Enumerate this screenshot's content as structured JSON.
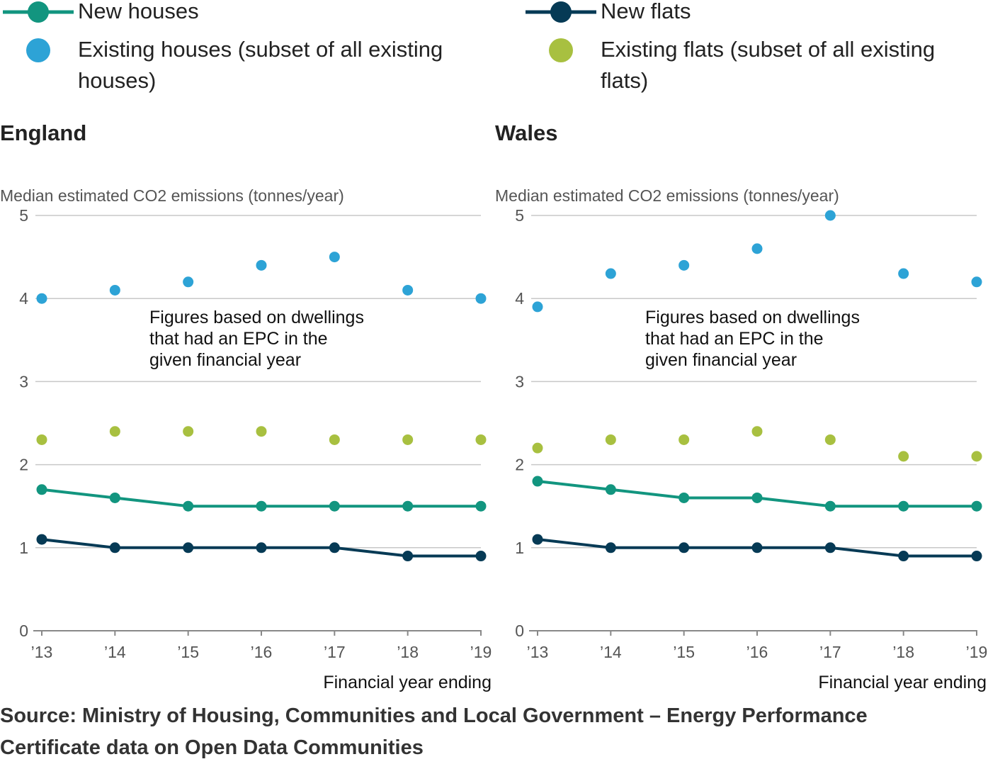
{
  "legend": {
    "items": [
      {
        "label": "New houses",
        "type": "line",
        "color": "#12957f"
      },
      {
        "label": "New flats",
        "type": "line",
        "color": "#063a55"
      },
      {
        "label_lines": [
          "Existing houses (subset of all existing",
          "houses)"
        ],
        "type": "dot",
        "color": "#2da3d6"
      },
      {
        "label_lines": [
          "Existing flats (subset of all existing",
          "flats)"
        ],
        "type": "dot",
        "color": "#a8c040"
      }
    ]
  },
  "source": {
    "lines": [
      "Source: Ministry of Housing, Communities and Local Government – Energy Performance",
      "Certificate data on Open Data Communities"
    ]
  },
  "chart_data": [
    {
      "type": "line",
      "title": "England",
      "ylabel": "Median estimated CO2 emissions (tonnes/year)",
      "xlabel": "Financial year ending",
      "categories": [
        "’13",
        "’14",
        "’15",
        "’16",
        "’17",
        "’18",
        "’19"
      ],
      "yticks": [
        "0",
        "1",
        "2",
        "3",
        "4",
        "5"
      ],
      "ylim": [
        0,
        5
      ],
      "grid": true,
      "annotation": [
        "Figures based on dwellings",
        "that had an EPC in the",
        "given financial year"
      ],
      "series": [
        {
          "name": "Existing houses (subset of all existing houses)",
          "style": "dots",
          "color": "#2da3d6",
          "values": [
            4.0,
            4.1,
            4.2,
            4.4,
            4.5,
            4.1,
            4.0
          ]
        },
        {
          "name": "Existing flats (subset of all existing flats)",
          "style": "dots",
          "color": "#a8c040",
          "values": [
            2.3,
            2.4,
            2.4,
            2.4,
            2.3,
            2.3,
            2.3
          ]
        },
        {
          "name": "New houses",
          "style": "line",
          "color": "#12957f",
          "values": [
            1.7,
            1.6,
            1.5,
            1.5,
            1.5,
            1.5,
            1.5
          ]
        },
        {
          "name": "New flats",
          "style": "line",
          "color": "#063a55",
          "values": [
            1.1,
            1.0,
            1.0,
            1.0,
            1.0,
            0.9,
            0.9
          ]
        }
      ]
    },
    {
      "type": "line",
      "title": "Wales",
      "ylabel": "Median estimated CO2 emissions (tonnes/year)",
      "xlabel": "Financial year ending",
      "categories": [
        "’13",
        "’14",
        "’15",
        "’16",
        "’17",
        "’18",
        "’19"
      ],
      "yticks": [
        "0",
        "1",
        "2",
        "3",
        "4",
        "5"
      ],
      "ylim": [
        0,
        5
      ],
      "grid": true,
      "annotation": [
        "Figures based on dwellings",
        "that had an EPC in the",
        "given financial year"
      ],
      "series": [
        {
          "name": "Existing houses (subset of all existing houses)",
          "style": "dots",
          "color": "#2da3d6",
          "values": [
            3.9,
            4.3,
            4.4,
            4.6,
            5.0,
            4.3,
            4.2
          ]
        },
        {
          "name": "Existing flats (subset of all existing flats)",
          "style": "dots",
          "color": "#a8c040",
          "values": [
            2.2,
            2.3,
            2.3,
            2.4,
            2.3,
            2.1,
            2.1
          ]
        },
        {
          "name": "New houses",
          "style": "line",
          "color": "#12957f",
          "values": [
            1.8,
            1.7,
            1.6,
            1.6,
            1.5,
            1.5,
            1.5
          ]
        },
        {
          "name": "New flats",
          "style": "line",
          "color": "#063a55",
          "values": [
            1.1,
            1.0,
            1.0,
            1.0,
            1.0,
            0.9,
            0.9
          ]
        }
      ]
    }
  ]
}
